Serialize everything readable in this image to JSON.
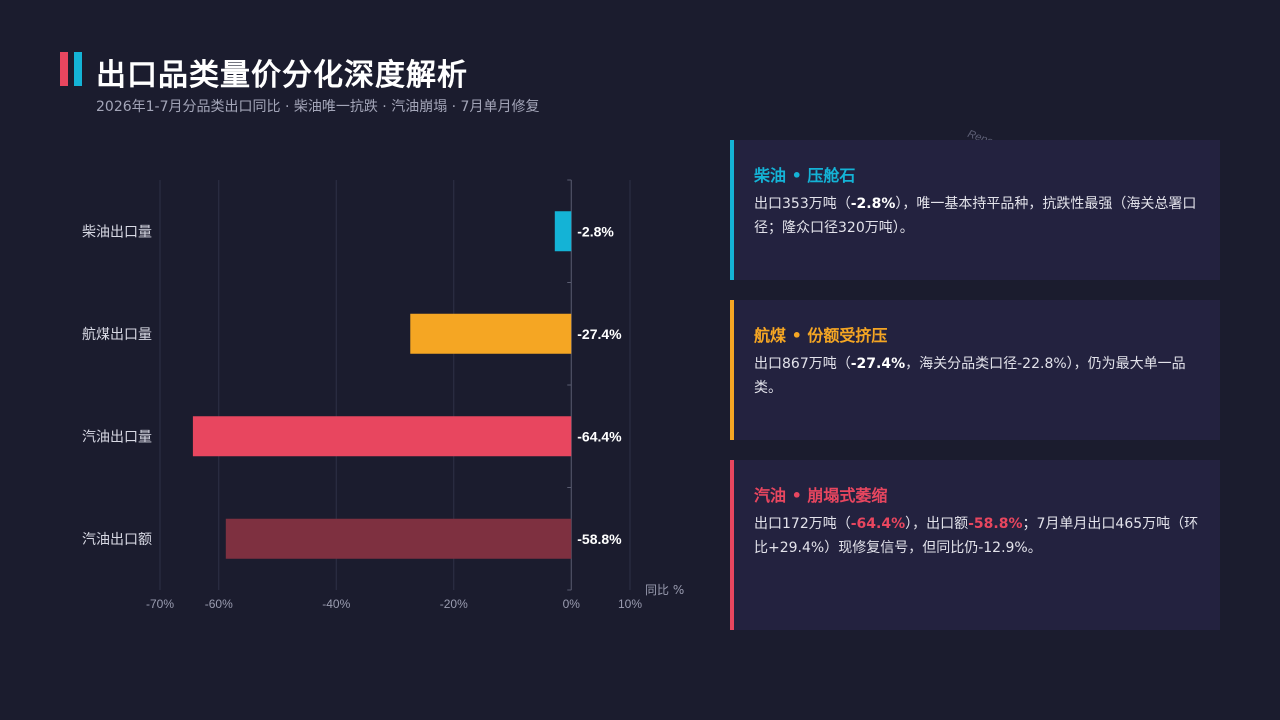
{
  "header": {
    "title": "出口品类量价分化深度解析",
    "subtitle": "2026年1-7月分品类出口同比 · 柴油唯一抗跌 · 汽油崩塌 · 7月单月修复"
  },
  "watermark": "Report @ AIDataSlide.com",
  "colors": {
    "background": "#1b1c2e",
    "diesel": "#14b3d6",
    "jet": "#f5a623",
    "gasoline": "#e8465f",
    "gasoline_value": "#7e3040",
    "card_bg": "#23223f"
  },
  "chart_data": {
    "type": "bar",
    "orientation": "horizontal",
    "categories": [
      "柴油出口量",
      "航煤出口量",
      "汽油出口量",
      "汽油出口额"
    ],
    "values": [
      -2.8,
      -27.4,
      -64.4,
      -58.8
    ],
    "value_labels": [
      "-2.8%",
      "-27.4%",
      "-64.4%",
      "-58.8%"
    ],
    "bar_colors": [
      "#14b3d6",
      "#f5a623",
      "#e8465f",
      "#7e3040"
    ],
    "xlim": [
      -70,
      10
    ],
    "xticks": [
      -70,
      -60,
      -40,
      -20,
      0,
      10
    ],
    "xtick_labels": [
      "-70%",
      "-60%",
      "-40%",
      "-20%",
      "0%",
      "10%"
    ],
    "xlabel": "同比 %",
    "grid": true
  },
  "cards": [
    {
      "title": "柴油 • 压舱石",
      "color": "#14b3d6",
      "body_1": "出口353万吨（",
      "body_2": "-2.8%",
      "body_3": "），唯一基本持平品种，抗跌性最强（海关总署口径；隆众口径320万吨）。"
    },
    {
      "title": "航煤 • 份额受挤压",
      "color": "#f5a623",
      "body_1": "出口867万吨（",
      "body_2": "-27.4%",
      "body_3": "，海关分品类口径-22.8%），仍为最大单一品类。"
    },
    {
      "title": "汽油 • 崩塌式萎缩",
      "color": "#e8465f",
      "body_1": "出口172万吨（",
      "body_2": "-64.4%",
      "body_3": "），出口额",
      "body_4": "-58.8%",
      "body_5": "；7月单月出口465万吨（环比+29.4%）现修复信号，但同比仍-12.9%。"
    }
  ]
}
